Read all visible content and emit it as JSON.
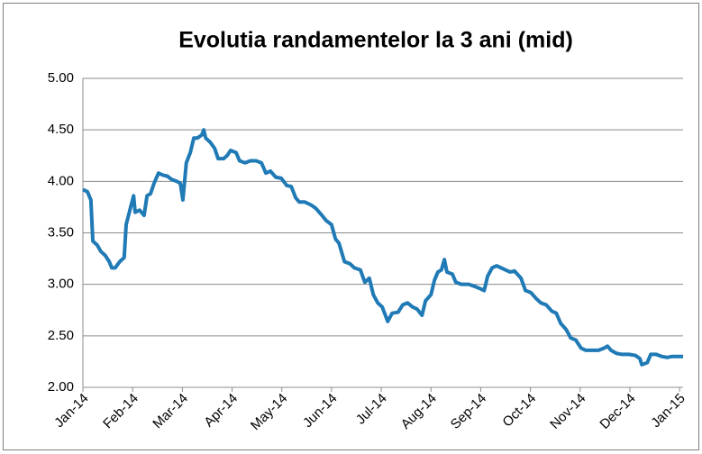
{
  "chart_data": {
    "type": "line",
    "title": "Evolutia randamentelor la 3 ani (mid)",
    "x": [
      0,
      0.09,
      0.16,
      0.2,
      0.29,
      0.36,
      0.45,
      0.53,
      0.58,
      0.65,
      0.74,
      0.83,
      0.87,
      0.96,
      1.02,
      1.05,
      1.14,
      1.23,
      1.29,
      1.36,
      1.43,
      1.52,
      1.61,
      1.7,
      1.78,
      1.89,
      1.96,
      2.01,
      2.08,
      2.16,
      2.23,
      2.3,
      2.39,
      2.43,
      2.47,
      2.56,
      2.65,
      2.72,
      2.83,
      2.9,
      2.97,
      3.08,
      3.15,
      3.26,
      3.37,
      3.48,
      3.59,
      3.68,
      3.77,
      3.88,
      3.99,
      4.1,
      4.19,
      4.28,
      4.35,
      4.46,
      4.59,
      4.68,
      4.79,
      4.89,
      5.0,
      5.08,
      5.15,
      5.26,
      5.37,
      5.46,
      5.58,
      5.67,
      5.76,
      5.84,
      5.93,
      6.02,
      6.13,
      6.22,
      6.34,
      6.43,
      6.53,
      6.63,
      6.72,
      6.82,
      6.89,
      7.0,
      7.07,
      7.14,
      7.21,
      7.27,
      7.32,
      7.43,
      7.5,
      7.61,
      7.76,
      7.88,
      7.98,
      8.07,
      8.14,
      8.23,
      8.32,
      8.41,
      8.5,
      8.59,
      8.68,
      8.81,
      8.9,
      9.01,
      9.12,
      9.21,
      9.32,
      9.43,
      9.52,
      9.61,
      9.72,
      9.81,
      9.91,
      10.02,
      10.11,
      10.24,
      10.37,
      10.48,
      10.55,
      10.62,
      10.73,
      10.84,
      10.98,
      11.11,
      11.2,
      11.24,
      11.35,
      11.42,
      11.53,
      11.64,
      11.75,
      11.85,
      12.07
    ],
    "series": [
      {
        "color": "#1f7ab5",
        "values": [
          3.92,
          3.9,
          3.82,
          3.42,
          3.38,
          3.32,
          3.28,
          3.22,
          3.16,
          3.16,
          3.22,
          3.26,
          3.58,
          3.75,
          3.86,
          3.7,
          3.72,
          3.67,
          3.86,
          3.88,
          3.98,
          4.08,
          4.06,
          4.05,
          4.02,
          4.0,
          3.98,
          3.82,
          4.18,
          4.28,
          4.42,
          4.42,
          4.45,
          4.5,
          4.42,
          4.38,
          4.32,
          4.22,
          4.22,
          4.25,
          4.3,
          4.28,
          4.2,
          4.18,
          4.2,
          4.2,
          4.18,
          4.08,
          4.1,
          4.04,
          4.03,
          3.96,
          3.95,
          3.84,
          3.8,
          3.8,
          3.77,
          3.74,
          3.68,
          3.62,
          3.58,
          3.44,
          3.4,
          3.22,
          3.2,
          3.16,
          3.14,
          3.02,
          3.06,
          2.9,
          2.82,
          2.78,
          2.64,
          2.72,
          2.73,
          2.8,
          2.82,
          2.78,
          2.76,
          2.7,
          2.84,
          2.9,
          3.04,
          3.12,
          3.14,
          3.24,
          3.12,
          3.1,
          3.02,
          3.0,
          3.0,
          2.98,
          2.96,
          2.94,
          3.08,
          3.16,
          3.18,
          3.16,
          3.14,
          3.12,
          3.13,
          3.06,
          2.94,
          2.92,
          2.86,
          2.82,
          2.8,
          2.74,
          2.72,
          2.62,
          2.56,
          2.48,
          2.46,
          2.38,
          2.36,
          2.36,
          2.36,
          2.38,
          2.4,
          2.36,
          2.33,
          2.32,
          2.32,
          2.31,
          2.28,
          2.22,
          2.24,
          2.32,
          2.32,
          2.3,
          2.29,
          2.3,
          2.3
        ]
      }
    ],
    "xlim": [
      0,
      12.07
    ],
    "xticks": [
      {
        "value": 0,
        "label": "Jan-14"
      },
      {
        "value": 1,
        "label": "Feb-14"
      },
      {
        "value": 2,
        "label": "Mar-14"
      },
      {
        "value": 3,
        "label": "Apr-14"
      },
      {
        "value": 4,
        "label": "May-14"
      },
      {
        "value": 5,
        "label": "Jun-14"
      },
      {
        "value": 6,
        "label": "Jul-14"
      },
      {
        "value": 7,
        "label": "Aug-14"
      },
      {
        "value": 8,
        "label": "Sep-14"
      },
      {
        "value": 9,
        "label": "Oct-14"
      },
      {
        "value": 10,
        "label": "Nov-14"
      },
      {
        "value": 11,
        "label": "Dec-14"
      },
      {
        "value": 12,
        "label": "Jan-15"
      }
    ],
    "ylim": [
      2,
      5
    ],
    "yticks": [
      {
        "value": 2,
        "label": "2.00"
      },
      {
        "value": 2.5,
        "label": "2.50"
      },
      {
        "value": 3,
        "label": "3.00"
      },
      {
        "value": 3.5,
        "label": "3.50"
      },
      {
        "value": 4,
        "label": "4.00"
      },
      {
        "value": 4.5,
        "label": "4.50"
      },
      {
        "value": 5,
        "label": "5.00"
      }
    ],
    "grid": true
  }
}
